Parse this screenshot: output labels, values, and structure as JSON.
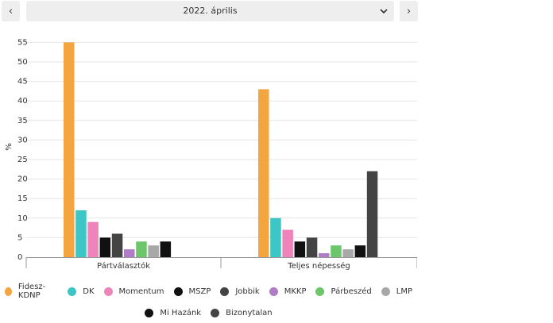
{
  "nav": {
    "prev_glyph": "‹",
    "next_glyph": "›",
    "selected_month": "2022. április",
    "dropdown_icon": "chevron-down-icon"
  },
  "chart_data": {
    "type": "bar",
    "ylabel": "%",
    "ylim": [
      0,
      56
    ],
    "yticks": [
      0,
      5,
      10,
      15,
      20,
      25,
      30,
      35,
      40,
      45,
      50,
      55
    ],
    "grid": true,
    "legend_position": "bottom",
    "categories": [
      "Pártválasztók",
      "Teljes népesség"
    ],
    "series": [
      {
        "name": "Fidesz-KDNP",
        "color": "#f4a540",
        "values": [
          55,
          43
        ]
      },
      {
        "name": "DK",
        "color": "#3cc6c6",
        "values": [
          12,
          10
        ]
      },
      {
        "name": "Momentum",
        "color": "#ef84bb",
        "values": [
          9,
          7
        ]
      },
      {
        "name": "MSZP",
        "color": "#111111",
        "values": [
          5,
          4
        ]
      },
      {
        "name": "Jobbik",
        "color": "#444444",
        "values": [
          6,
          5
        ]
      },
      {
        "name": "MKKP",
        "color": "#b07cc6",
        "values": [
          2,
          1
        ]
      },
      {
        "name": "Párbeszéd",
        "color": "#6cc66a",
        "values": [
          4,
          3
        ]
      },
      {
        "name": "LMP",
        "color": "#a8a8a8",
        "values": [
          3,
          2
        ]
      },
      {
        "name": "Mi Hazánk",
        "color": "#111111",
        "values": [
          4,
          3
        ]
      },
      {
        "name": "Bizonytalan",
        "color": "#444444",
        "values": [
          null,
          22
        ]
      }
    ]
  }
}
